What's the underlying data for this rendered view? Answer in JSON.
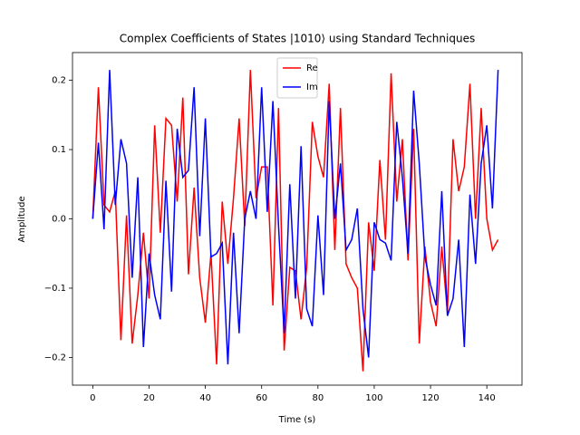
{
  "chart_data": {
    "type": "line",
    "title": "Complex Coefficients of States |1010⟩ using Standard Techniques",
    "xlabel": "Time (s)",
    "ylabel": "Amplitude",
    "x": [
      0,
      2,
      4,
      6,
      8,
      10,
      12,
      14,
      16,
      18,
      20,
      22,
      24,
      26,
      28,
      30,
      32,
      34,
      36,
      38,
      40,
      42,
      44,
      46,
      48,
      50,
      52,
      54,
      56,
      58,
      60,
      62,
      64,
      66,
      68,
      70,
      72,
      74,
      76,
      78,
      80,
      82,
      84,
      86,
      88,
      90,
      92,
      94,
      96,
      98,
      100,
      102,
      104,
      106,
      108,
      110,
      112,
      114,
      116,
      118,
      120,
      122,
      124,
      126,
      128,
      130,
      132,
      134,
      136,
      138,
      140,
      142,
      144
    ],
    "series": [
      {
        "name": "Re",
        "color": "#ff0000",
        "values": [
          0,
          0.19,
          0.02,
          0.01,
          0.04,
          -0.175,
          0.005,
          -0.18,
          -0.11,
          -0.02,
          -0.115,
          0.135,
          -0.02,
          0.145,
          0.135,
          0.025,
          0.175,
          -0.08,
          0.045,
          -0.085,
          -0.15,
          -0.05,
          -0.21,
          0.025,
          -0.065,
          0.03,
          0.145,
          -0.01,
          0.215,
          0.03,
          0.075,
          0.075,
          -0.125,
          0.16,
          -0.19,
          -0.07,
          -0.075,
          -0.145,
          -0.07,
          0.14,
          0.09,
          0.06,
          0.195,
          -0.045,
          0.16,
          -0.065,
          -0.085,
          -0.1,
          -0.22,
          -0.005,
          -0.075,
          0.085,
          -0.03,
          0.21,
          0.025,
          0.115,
          -0.06,
          0.13,
          -0.18,
          -0.04,
          -0.12,
          -0.155,
          -0.04,
          -0.135,
          0.115,
          0.04,
          0.075,
          0.195,
          0,
          0.16,
          0,
          -0.045,
          -0.03
        ]
      },
      {
        "name": "Im",
        "color": "#0000ff",
        "values": [
          0,
          0.11,
          -0.015,
          0.215,
          0.02,
          0.115,
          0.08,
          -0.085,
          0.06,
          -0.185,
          -0.05,
          -0.11,
          -0.145,
          0.055,
          -0.105,
          0.13,
          0.06,
          0.07,
          0.19,
          -0.025,
          0.145,
          -0.055,
          -0.05,
          -0.035,
          -0.21,
          -0.02,
          -0.165,
          0,
          0.04,
          0,
          0.19,
          0.01,
          0.17,
          -0.01,
          -0.165,
          0.05,
          -0.115,
          0.105,
          -0.13,
          -0.155,
          0.005,
          -0.11,
          0.17,
          0,
          0.08,
          -0.045,
          -0.03,
          0.015,
          -0.13,
          -0.2,
          -0.005,
          -0.03,
          -0.035,
          -0.06,
          0.14,
          0.06,
          -0.05,
          0.185,
          0.08,
          -0.055,
          -0.095,
          -0.125,
          0.04,
          -0.14,
          -0.115,
          -0.03,
          -0.185,
          0.035,
          -0.065,
          0.08,
          0.135,
          0.015,
          0.215
        ]
      }
    ],
    "xlim": [
      -7.2,
      152.5
    ],
    "ylim": [
      -0.24,
      0.24
    ],
    "xticks": [
      0,
      20,
      40,
      60,
      80,
      100,
      120,
      140
    ],
    "yticks": [
      {
        "value": -0.2,
        "label": "−0.2"
      },
      {
        "value": -0.1,
        "label": "−0.1"
      },
      {
        "value": 0,
        "label": "0.0"
      },
      0.1,
      0.2
    ],
    "legend": "upper center"
  }
}
